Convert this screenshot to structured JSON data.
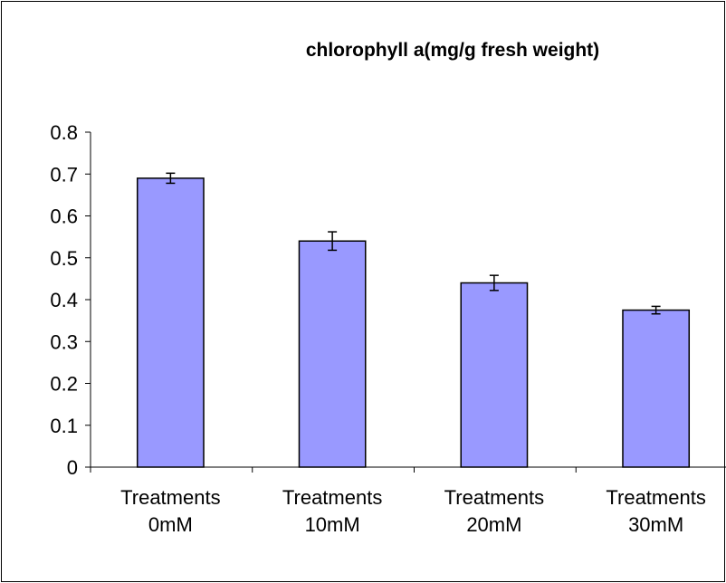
{
  "chart_data": {
    "type": "bar",
    "title": "chlorophyll a(mg/g fresh weight)",
    "categories": [
      "Treatments 0mM",
      "Treatments 10mM",
      "Treatments 20mM",
      "Treatments 30mM"
    ],
    "values": [
      0.69,
      0.54,
      0.44,
      0.375
    ],
    "errors": [
      0.012,
      0.022,
      0.018,
      0.009
    ],
    "color": "#9999ff",
    "ylim": [
      0,
      0.8
    ],
    "yticks": [
      0,
      0.1,
      0.2,
      0.3,
      0.4,
      0.5,
      0.6,
      0.7,
      0.8
    ],
    "grid": false
  }
}
